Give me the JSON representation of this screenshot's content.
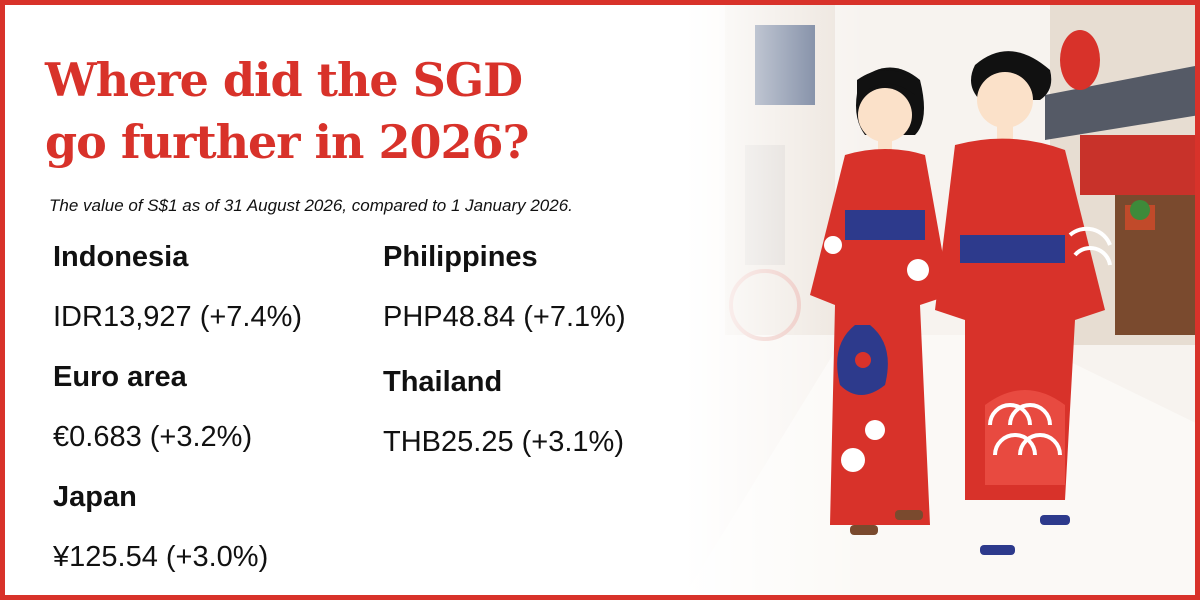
{
  "header": {
    "title_lines": [
      "Where did the SGD",
      "go further in 2026?"
    ],
    "subtitle": "The value of S$1 as of 31 August 2026, compared to 1 January 2026."
  },
  "columns": [
    [
      {
        "country": "Indonesia",
        "value": "IDR13,927 (+7.4%)"
      },
      {
        "country": "Euro area",
        "value": "€0.683 (+3.2%)"
      },
      {
        "country": "Japan",
        "value": "¥125.54 (+3.0%)"
      }
    ],
    [
      {
        "country": "Philippines",
        "value": "PHP48.84 (+7.1%)"
      },
      {
        "country": "Thailand",
        "value": "THB25.25 (+3.1%)"
      }
    ]
  ]
}
